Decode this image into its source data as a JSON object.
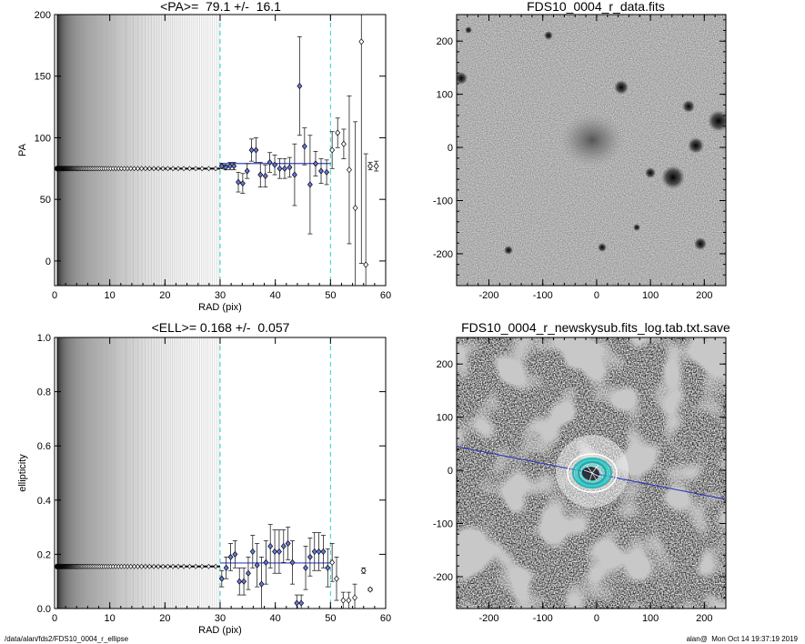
{
  "footer": {
    "path": "/data/alan/fds2/FDS10_0004_r_ellipse",
    "stamp": "alan@  Mon Oct 14 19:37:19 2019"
  },
  "chart_data": [
    {
      "type": "scatter",
      "title": "<PA>=  79.1 +/-  16.1",
      "xlabel": "RAD (pix)",
      "ylabel": "PA",
      "xlim": [
        0,
        60
      ],
      "ylim": [
        -20,
        200
      ],
      "xticks": [
        0,
        10,
        20,
        30,
        40,
        50,
        60
      ],
      "yticks": [
        0,
        50,
        100,
        150,
        200
      ],
      "grid": false,
      "dense_lines": {
        "from": 0.5,
        "to": 30,
        "color_start": "#000000",
        "color_end": "#dddddd"
      },
      "marked_radii": [
        30,
        50
      ],
      "mean_line": {
        "y": 79.1,
        "x_from": 30,
        "x_to": 50,
        "color": "#3344cc"
      },
      "baseline": {
        "y": 75,
        "x_from": 0.3,
        "x_to": 30
      },
      "points": [
        {
          "x": 30.3,
          "y": 77,
          "err": 2
        },
        {
          "x": 31.0,
          "y": 76,
          "err": 2
        },
        {
          "x": 31.8,
          "y": 77,
          "err": 3
        },
        {
          "x": 32.5,
          "y": 77,
          "err": 3
        },
        {
          "x": 33.3,
          "y": 64,
          "err": 8
        },
        {
          "x": 34.1,
          "y": 63,
          "err": 8
        },
        {
          "x": 34.9,
          "y": 73,
          "err": 6
        },
        {
          "x": 35.7,
          "y": 90,
          "err": 9
        },
        {
          "x": 36.5,
          "y": 90,
          "err": 10
        },
        {
          "x": 37.3,
          "y": 70,
          "err": 10
        },
        {
          "x": 38.2,
          "y": 69,
          "err": 9
        },
        {
          "x": 39.0,
          "y": 80,
          "err": 8
        },
        {
          "x": 39.9,
          "y": 78,
          "err": 8
        },
        {
          "x": 40.8,
          "y": 75,
          "err": 8
        },
        {
          "x": 41.7,
          "y": 75,
          "err": 8
        },
        {
          "x": 42.6,
          "y": 76,
          "err": 8
        },
        {
          "x": 43.5,
          "y": 70,
          "err": 25
        },
        {
          "x": 44.4,
          "y": 142,
          "err": 40
        },
        {
          "x": 45.3,
          "y": 93,
          "err": 15
        },
        {
          "x": 46.3,
          "y": 62,
          "err": 40
        },
        {
          "x": 47.3,
          "y": 79,
          "err": 10
        },
        {
          "x": 48.3,
          "y": 73,
          "err": 10
        },
        {
          "x": 49.3,
          "y": 72,
          "err": 10
        },
        {
          "x": 50.3,
          "y": 90,
          "err": 15
        },
        {
          "x": 51.3,
          "y": 104,
          "err": 12
        },
        {
          "x": 52.4,
          "y": 95,
          "err": 12
        },
        {
          "x": 53.4,
          "y": 74,
          "err": 60
        },
        {
          "x": 54.5,
          "y": 43,
          "err": 70
        },
        {
          "x": 55.6,
          "y": 178,
          "err": 180
        },
        {
          "x": 56.4,
          "y": -3,
          "err": 90
        },
        {
          "x": 57.2,
          "y": 77,
          "err": 3
        },
        {
          "x": 58.3,
          "y": 77,
          "err": 4
        }
      ]
    },
    {
      "type": "heatmap",
      "title": "FDS10_0004_r_data.fits",
      "xlim": [
        -260,
        240
      ],
      "ylim": [
        -260,
        250
      ],
      "xticks": [
        -200,
        -100,
        0,
        100,
        200
      ],
      "yticks": [
        -200,
        -100,
        0,
        100,
        200
      ],
      "colormap": "inverted grayscale"
    },
    {
      "type": "scatter",
      "title": "<ELL>= 0.168 +/-  0.057",
      "xlabel": "RAD (pix)",
      "ylabel": "ellipticity",
      "xlim": [
        0,
        60
      ],
      "ylim": [
        0,
        1
      ],
      "xticks": [
        0,
        10,
        20,
        30,
        40,
        50,
        60
      ],
      "yticks": [
        0.0,
        0.2,
        0.4,
        0.6,
        0.8,
        1.0
      ],
      "grid": false,
      "dense_lines": {
        "from": 0.5,
        "to": 30,
        "color_start": "#000000",
        "color_end": "#dddddd"
      },
      "marked_radii": [
        30,
        50
      ],
      "mean_line": {
        "y": 0.168,
        "x_from": 30,
        "x_to": 50,
        "color": "#3344cc"
      },
      "baseline": {
        "y": 0.155,
        "x_from": 0.3,
        "x_to": 30
      },
      "points": [
        {
          "x": 30.3,
          "y": 0.11,
          "err": 0.03
        },
        {
          "x": 31.1,
          "y": 0.15,
          "err": 0.04
        },
        {
          "x": 31.9,
          "y": 0.19,
          "err": 0.05
        },
        {
          "x": 32.7,
          "y": 0.2,
          "err": 0.05
        },
        {
          "x": 33.5,
          "y": 0.1,
          "err": 0.05
        },
        {
          "x": 34.3,
          "y": 0.1,
          "err": 0.05
        },
        {
          "x": 35.1,
          "y": 0.13,
          "err": 0.06
        },
        {
          "x": 35.9,
          "y": 0.21,
          "err": 0.06
        },
        {
          "x": 36.7,
          "y": 0.16,
          "err": 0.08
        },
        {
          "x": 37.5,
          "y": 0.09,
          "err": 0.1
        },
        {
          "x": 38.3,
          "y": 0.17,
          "err": 0.08
        },
        {
          "x": 39.1,
          "y": 0.23,
          "err": 0.08
        },
        {
          "x": 39.9,
          "y": 0.21,
          "err": 0.08
        },
        {
          "x": 40.7,
          "y": 0.21,
          "err": 0.08
        },
        {
          "x": 41.5,
          "y": 0.23,
          "err": 0.06
        },
        {
          "x": 42.3,
          "y": 0.24,
          "err": 0.06
        },
        {
          "x": 43.1,
          "y": 0.17,
          "err": 0.08
        },
        {
          "x": 43.9,
          "y": 0.02,
          "err": 0.03
        },
        {
          "x": 44.7,
          "y": 0.02,
          "err": 0.03
        },
        {
          "x": 45.5,
          "y": 0.15,
          "err": 0.08
        },
        {
          "x": 46.3,
          "y": 0.19,
          "err": 0.07
        },
        {
          "x": 47.1,
          "y": 0.21,
          "err": 0.07
        },
        {
          "x": 47.9,
          "y": 0.21,
          "err": 0.07
        },
        {
          "x": 48.7,
          "y": 0.21,
          "err": 0.06
        },
        {
          "x": 49.5,
          "y": 0.15,
          "err": 0.07
        },
        {
          "x": 50.3,
          "y": 0.17,
          "err": 0.07
        },
        {
          "x": 51.1,
          "y": 0.11,
          "err": 0.08
        },
        {
          "x": 52.3,
          "y": 0.03,
          "err": 0.03
        },
        {
          "x": 53.3,
          "y": 0.03,
          "err": 0.03
        },
        {
          "x": 54.4,
          "y": 0.04,
          "err": 0.05
        },
        {
          "x": 56.0,
          "y": 0.14,
          "err": 0.01
        },
        {
          "x": 57.2,
          "y": 0.07,
          "err": 0.005
        }
      ]
    },
    {
      "type": "heatmap",
      "title": "FDS10_0004_r_newskysub.fits_log.tab.txt.save",
      "xlim": [
        -260,
        240
      ],
      "ylim": [
        -260,
        250
      ],
      "xticks": [
        -200,
        -100,
        0,
        100,
        200
      ],
      "yticks": [
        -200,
        -100,
        0,
        100,
        200
      ],
      "colormap": "grayscale masked",
      "overlay": {
        "ellipses": "cyan concentric isophotes at center",
        "line": "position-angle line, blue"
      }
    }
  ]
}
